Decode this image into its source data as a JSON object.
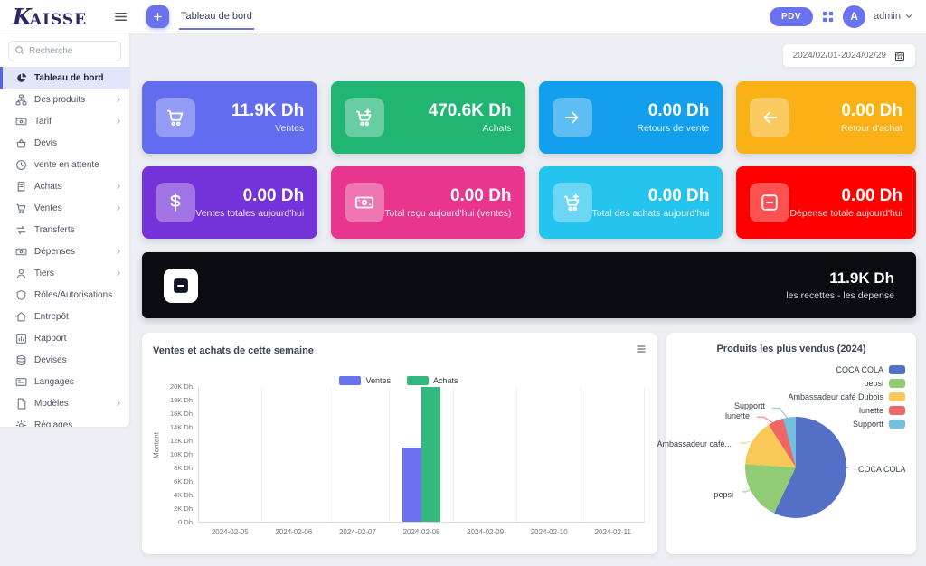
{
  "header": {
    "logo_initial": "K",
    "logo_text": "AISSE",
    "tab_label": "Tableau de bord",
    "pdv_label": "PDV",
    "user_initial": "A",
    "user_name": "admin"
  },
  "sidebar": {
    "search_placeholder": "Recherche",
    "items": [
      {
        "label": "Tableau de bord",
        "icon": "chart-pie",
        "active": true,
        "chevron": false
      },
      {
        "label": "Des produits",
        "icon": "sitemap",
        "active": false,
        "chevron": true
      },
      {
        "label": "Tarif",
        "icon": "banknote",
        "active": false,
        "chevron": true
      },
      {
        "label": "Devis",
        "icon": "basket",
        "active": false,
        "chevron": false
      },
      {
        "label": "vente en attente",
        "icon": "clock",
        "active": false,
        "chevron": false
      },
      {
        "label": "Achats",
        "icon": "receipt",
        "active": false,
        "chevron": true
      },
      {
        "label": "Ventes",
        "icon": "cart",
        "active": false,
        "chevron": true
      },
      {
        "label": "Transferts",
        "icon": "transfer",
        "active": false,
        "chevron": false
      },
      {
        "label": "Dépenses",
        "icon": "banknote",
        "active": false,
        "chevron": true
      },
      {
        "label": "Tiers",
        "icon": "user",
        "active": false,
        "chevron": true
      },
      {
        "label": "Rôles/Autorisations",
        "icon": "shield",
        "active": false,
        "chevron": false
      },
      {
        "label": "Entrepôt",
        "icon": "home",
        "active": false,
        "chevron": false
      },
      {
        "label": "Rapport",
        "icon": "chart-bar",
        "active": false,
        "chevron": false
      },
      {
        "label": "Devises",
        "icon": "coins",
        "active": false,
        "chevron": false
      },
      {
        "label": "Langages",
        "icon": "language",
        "active": false,
        "chevron": false
      },
      {
        "label": "Modèles",
        "icon": "file",
        "active": false,
        "chevron": true
      },
      {
        "label": "Réglages",
        "icon": "gear",
        "active": false,
        "chevron": false
      }
    ]
  },
  "filters": {
    "date_range": "2024/02/01-2024/02/29"
  },
  "stat_cards": [
    {
      "value": "11.9K Dh",
      "label": "Ventes",
      "color": "#626cef",
      "icon": "cart"
    },
    {
      "value": "470.6K Dh",
      "label": "Achats",
      "color": "#21b573",
      "icon": "cart-plus"
    },
    {
      "value": "0.00 Dh",
      "label": "Retours de vente",
      "color": "#129fed",
      "icon": "arrow-right"
    },
    {
      "value": "0.00 Dh",
      "label": "Retour d'achat",
      "color": "#f9b115",
      "icon": "arrow-left"
    },
    {
      "value": "0.00 Dh",
      "label": "Ventes totales aujourd'hui",
      "color": "#7433d8",
      "icon": "dollar"
    },
    {
      "value": "0.00 Dh",
      "label": "Total reçu aujourd'hui (ventes)",
      "color": "#e8368f",
      "icon": "banknote"
    },
    {
      "value": "0.00 Dh",
      "label": "Total des achats aujourd'hui",
      "color": "#25c4ef",
      "icon": "cart-plus"
    },
    {
      "value": "0.00 Dh",
      "label": "Dépense totale aujourd'hui",
      "color": "#fe0000",
      "icon": "minus-square"
    }
  ],
  "banner": {
    "value": "11.9K Dh",
    "label": "les recettes - les depense",
    "color": "#0a0c11",
    "icon": "minus-square"
  },
  "chart_data": [
    {
      "type": "bar",
      "title": "Ventes et achats de cette semaine",
      "categories": [
        "2024-02-05",
        "2024-02-06",
        "2024-02-07",
        "2024-02-08",
        "2024-02-09",
        "2024-02-10",
        "2024-02-11"
      ],
      "series": [
        {
          "name": "Ventes",
          "color": "#6b72ef",
          "values": [
            0,
            0,
            0,
            11000,
            0,
            0,
            0
          ]
        },
        {
          "name": "Achats",
          "color": "#33b97d",
          "values": [
            0,
            0,
            0,
            20000,
            0,
            0,
            0
          ]
        }
      ],
      "xlabel": "",
      "ylabel": "Montant",
      "ylim": [
        0,
        20000
      ],
      "ytick_step": 2000,
      "ytick_format": "K Dh",
      "grid": "vertical",
      "legend_position": "top"
    },
    {
      "type": "pie",
      "title": "Produits les plus vendus (2024)",
      "slices": [
        {
          "name": "COCA COLA",
          "callout": "COCA COLA",
          "percent": 57,
          "color": "#5470c6"
        },
        {
          "name": "pepsi",
          "callout": "pepsi",
          "percent": 19,
          "color": "#91cc75"
        },
        {
          "name": "Ambassadeur café Dubois",
          "callout": "Ambassadeur café...",
          "percent": 15,
          "color": "#fac858"
        },
        {
          "name": "lunette",
          "callout": "lunette",
          "percent": 5,
          "color": "#ee6666"
        },
        {
          "name": "Supportt",
          "callout": "Supportt",
          "percent": 4,
          "color": "#73c0de"
        }
      ],
      "legend_position": "right"
    }
  ]
}
